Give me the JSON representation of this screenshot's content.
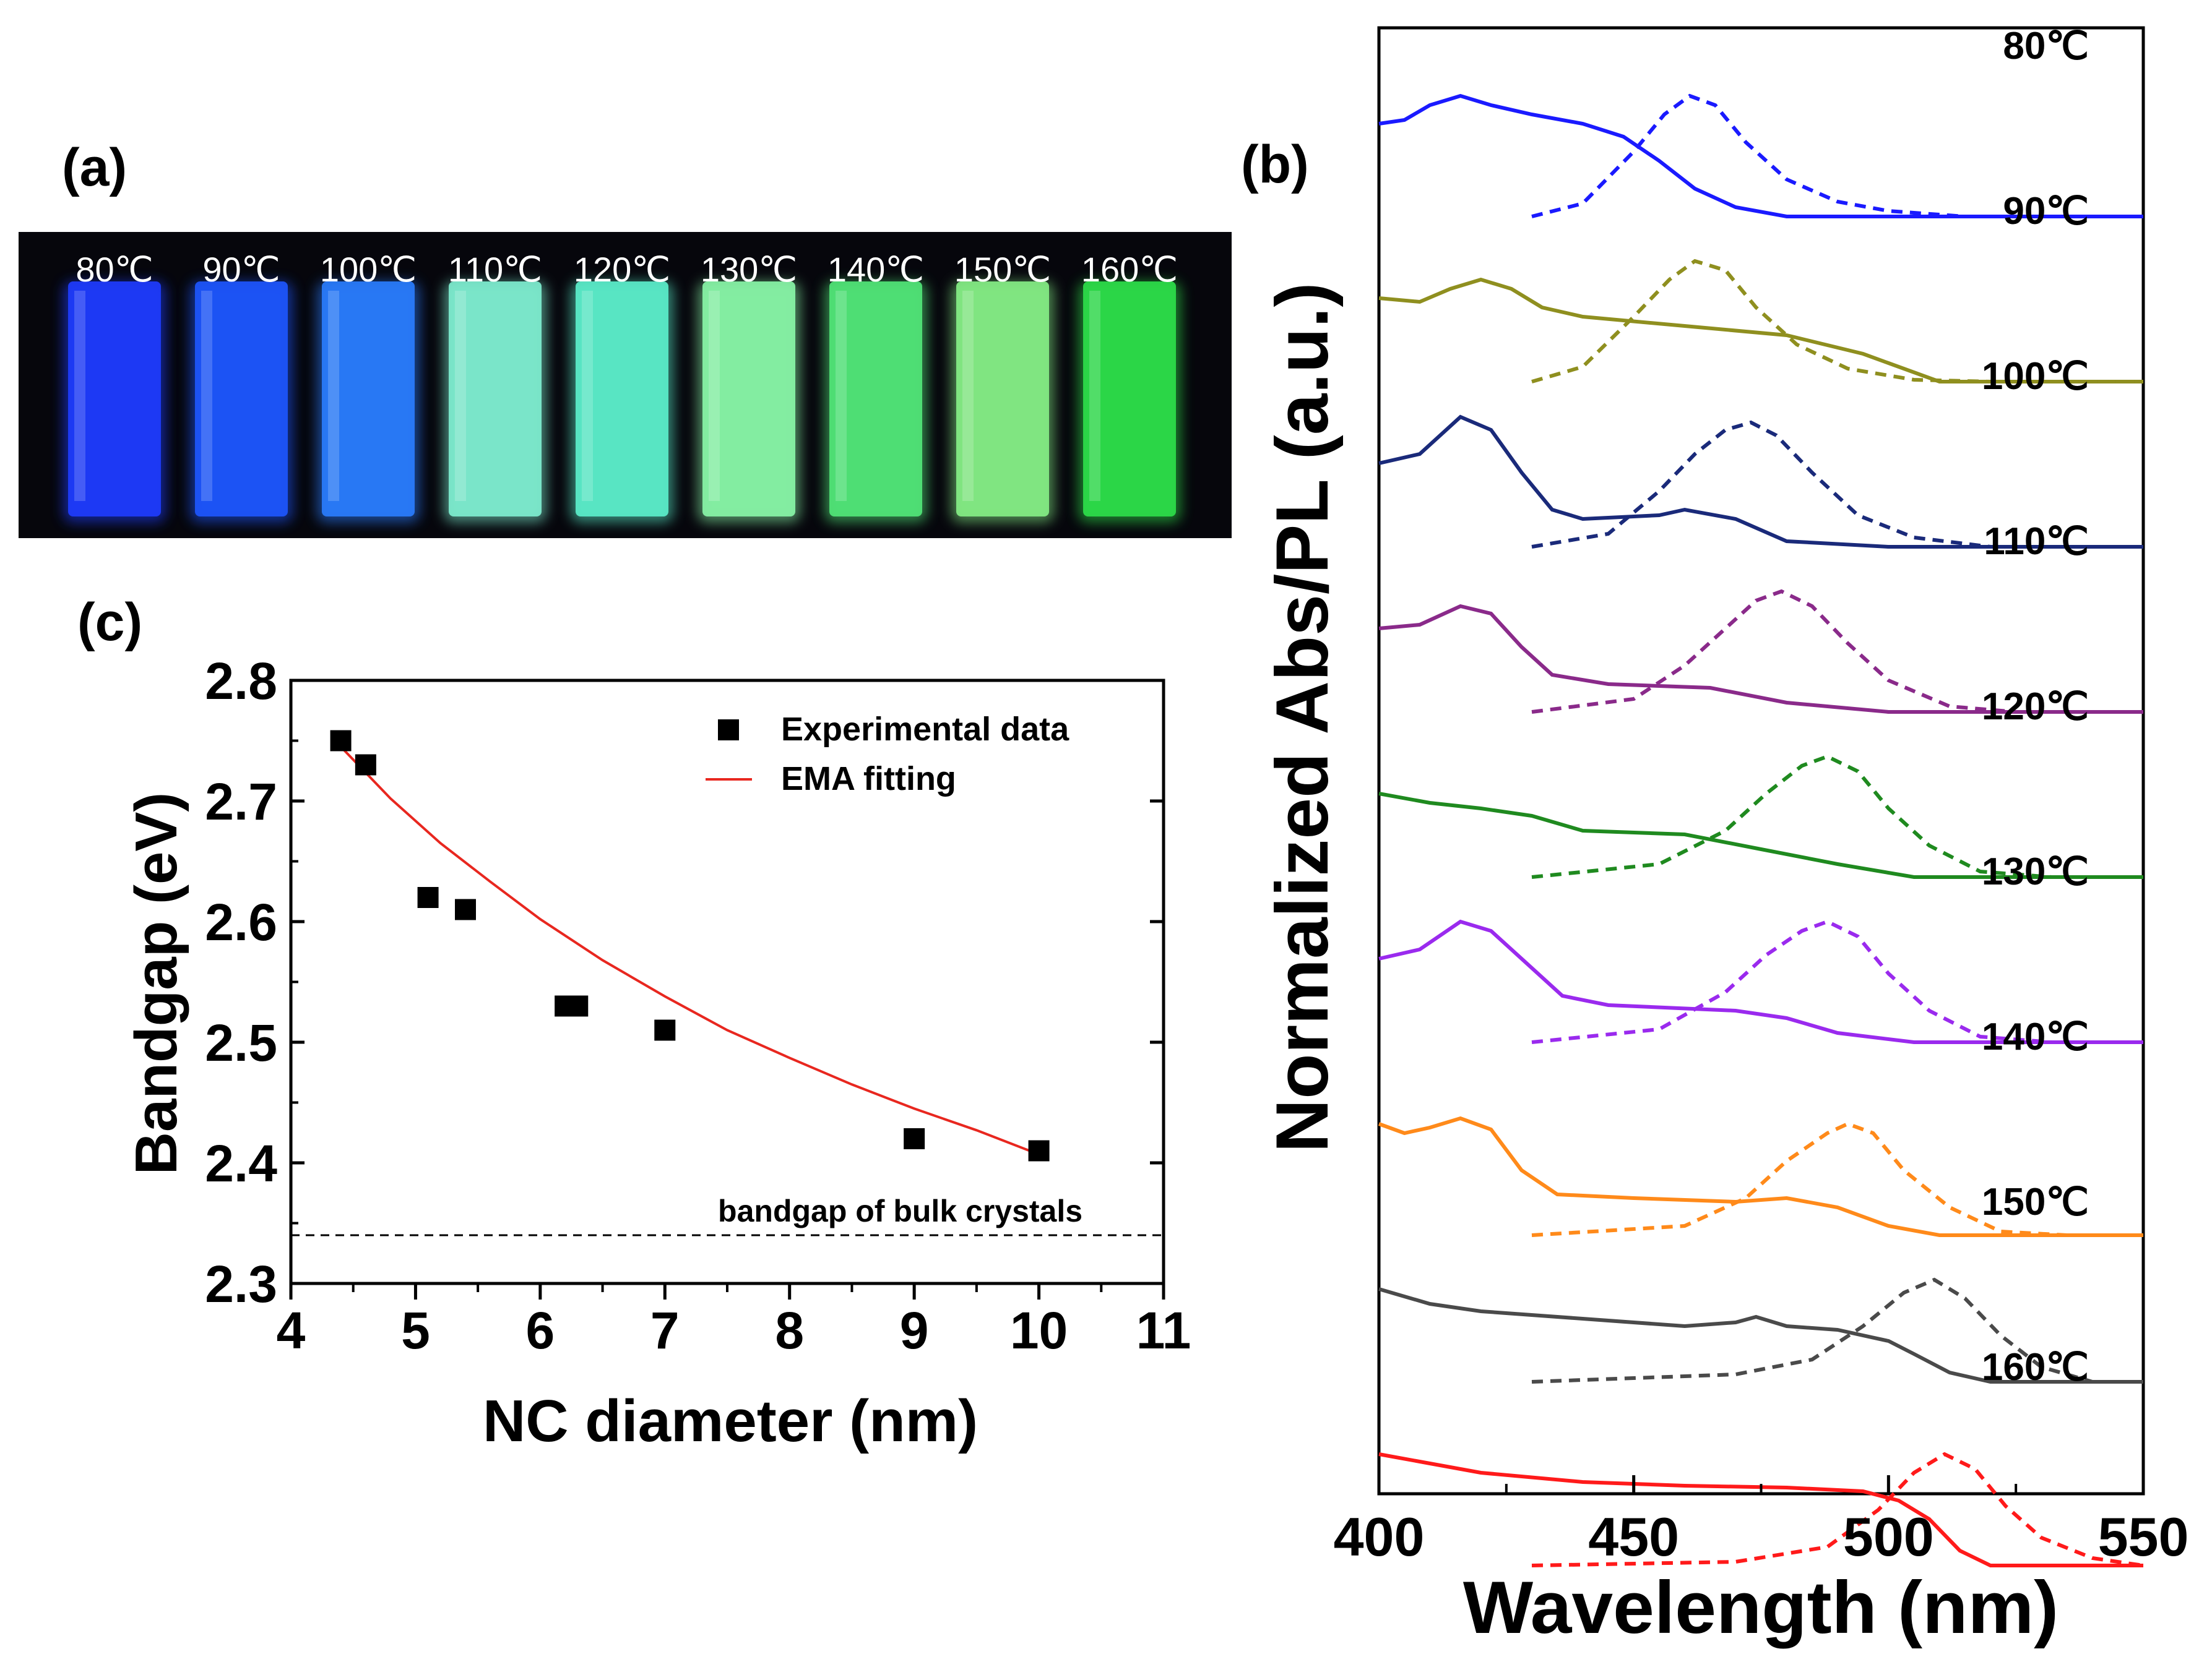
{
  "panels": {
    "a": {
      "label": "(a)"
    },
    "b": {
      "label": "(b)"
    },
    "c": {
      "label": "(c)"
    }
  },
  "photo": {
    "vials": [
      {
        "label": "80℃",
        "color": "#1f3cff"
      },
      {
        "label": "90℃",
        "color": "#1e57ff"
      },
      {
        "label": "100℃",
        "color": "#2a7dff"
      },
      {
        "label": "110℃",
        "color": "#7ff0d2"
      },
      {
        "label": "120℃",
        "color": "#5cf0cc"
      },
      {
        "label": "130℃",
        "color": "#8af7a8"
      },
      {
        "label": "140℃",
        "color": "#52e879"
      },
      {
        "label": "150℃",
        "color": "#86ef86"
      },
      {
        "label": "160℃",
        "color": "#2ee04a"
      }
    ]
  },
  "chart_data": [
    {
      "type": "scatter",
      "panel": "c",
      "xlabel": "NC diameter (nm)",
      "ylabel": "Bandgap (eV)",
      "xlim": [
        4,
        11
      ],
      "ylim": [
        2.3,
        2.8
      ],
      "xticks": [
        "4",
        "5",
        "6",
        "7",
        "8",
        "9",
        "10",
        "11"
      ],
      "yticks": [
        "2.3",
        "2.4",
        "2.5",
        "2.6",
        "2.7",
        "2.8"
      ],
      "series": [
        {
          "name": "Experimental data",
          "x": [
            4.4,
            4.6,
            5.1,
            5.4,
            6.2,
            6.3,
            7.0,
            9.0,
            10.0
          ],
          "y": [
            2.75,
            2.73,
            2.62,
            2.61,
            2.53,
            2.53,
            2.51,
            2.42,
            2.41
          ]
        },
        {
          "name": "EMA fitting",
          "color": "#e8271f",
          "x": [
            4.4,
            4.8,
            5.2,
            5.6,
            6.0,
            6.5,
            7.0,
            7.5,
            8.0,
            8.5,
            9.0,
            9.5,
            10.0
          ],
          "y": [
            2.745,
            2.702,
            2.665,
            2.633,
            2.602,
            2.568,
            2.538,
            2.51,
            2.487,
            2.465,
            2.445,
            2.427,
            2.407
          ]
        }
      ],
      "reference_line": {
        "label": "bandgap of bulk crystals",
        "y": 2.34
      }
    },
    {
      "type": "line",
      "panel": "b",
      "xlabel": "Wavelength (nm)",
      "ylabel": "Normalized Abs/PL (a.u.)",
      "xlim": [
        400,
        550
      ],
      "xticks": [
        "400",
        "450",
        "500",
        "550"
      ],
      "series": [
        {
          "name": "80℃",
          "color": "#1a1aff",
          "abs": [
            [
              400,
              0.05
            ],
            [
              405,
              0.07
            ],
            [
              410,
              0.15
            ],
            [
              416,
              0.2
            ],
            [
              422,
              0.15
            ],
            [
              430,
              0.1
            ],
            [
              440,
              0.05
            ],
            [
              448,
              -0.02
            ],
            [
              455,
              -0.15
            ],
            [
              462,
              -0.3
            ],
            [
              470,
              -0.4
            ],
            [
              480,
              -0.45
            ],
            [
              500,
              -0.45
            ],
            [
              550,
              -0.45
            ]
          ],
          "pl": [
            [
              430,
              -0.45
            ],
            [
              440,
              -0.38
            ],
            [
              450,
              -0.1
            ],
            [
              456,
              0.1
            ],
            [
              461,
              0.2
            ],
            [
              466,
              0.15
            ],
            [
              472,
              -0.05
            ],
            [
              480,
              -0.25
            ],
            [
              490,
              -0.37
            ],
            [
              500,
              -0.42
            ],
            [
              515,
              -0.45
            ],
            [
              550,
              -0.45
            ]
          ]
        },
        {
          "name": "90℃",
          "color": "#8f8f1f",
          "abs": [
            [
              400,
              0.0
            ],
            [
              408,
              -0.02
            ],
            [
              414,
              0.05
            ],
            [
              420,
              0.1
            ],
            [
              426,
              0.05
            ],
            [
              432,
              -0.05
            ],
            [
              440,
              -0.1
            ],
            [
              460,
              -0.15
            ],
            [
              480,
              -0.2
            ],
            [
              495,
              -0.3
            ],
            [
              500,
              -0.35
            ],
            [
              510,
              -0.45
            ],
            [
              550,
              -0.45
            ]
          ],
          "pl": [
            [
              430,
              -0.45
            ],
            [
              440,
              -0.37
            ],
            [
              450,
              -0.1
            ],
            [
              457,
              0.1
            ],
            [
              462,
              0.2
            ],
            [
              468,
              0.15
            ],
            [
              474,
              -0.05
            ],
            [
              482,
              -0.25
            ],
            [
              492,
              -0.38
            ],
            [
              505,
              -0.44
            ],
            [
              520,
              -0.45
            ],
            [
              550,
              -0.45
            ]
          ]
        },
        {
          "name": "100℃",
          "color": "#1a2a7a",
          "abs": [
            [
              400,
              0.0
            ],
            [
              408,
              0.05
            ],
            [
              416,
              0.25
            ],
            [
              422,
              0.18
            ],
            [
              428,
              -0.05
            ],
            [
              434,
              -0.25
            ],
            [
              440,
              -0.3
            ],
            [
              455,
              -0.28
            ],
            [
              460,
              -0.25
            ],
            [
              470,
              -0.3
            ],
            [
              480,
              -0.42
            ],
            [
              500,
              -0.45
            ],
            [
              550,
              -0.45
            ]
          ],
          "pl": [
            [
              430,
              -0.45
            ],
            [
              445,
              -0.38
            ],
            [
              455,
              -0.15
            ],
            [
              462,
              0.05
            ],
            [
              468,
              0.18
            ],
            [
              473,
              0.22
            ],
            [
              478,
              0.15
            ],
            [
              485,
              -0.05
            ],
            [
              494,
              -0.28
            ],
            [
              505,
              -0.4
            ],
            [
              520,
              -0.45
            ],
            [
              550,
              -0.45
            ]
          ]
        },
        {
          "name": "110℃",
          "color": "#8a2a8a",
          "abs": [
            [
              400,
              0.0
            ],
            [
              408,
              0.02
            ],
            [
              416,
              0.12
            ],
            [
              422,
              0.08
            ],
            [
              428,
              -0.1
            ],
            [
              434,
              -0.25
            ],
            [
              445,
              -0.3
            ],
            [
              465,
              -0.32
            ],
            [
              480,
              -0.4
            ],
            [
              500,
              -0.45
            ],
            [
              550,
              -0.45
            ]
          ],
          "pl": [
            [
              430,
              -0.45
            ],
            [
              450,
              -0.38
            ],
            [
              460,
              -0.2
            ],
            [
              468,
              0.0
            ],
            [
              474,
              0.15
            ],
            [
              479,
              0.2
            ],
            [
              485,
              0.12
            ],
            [
              492,
              -0.08
            ],
            [
              500,
              -0.28
            ],
            [
              512,
              -0.42
            ],
            [
              525,
              -0.45
            ],
            [
              550,
              -0.45
            ]
          ]
        },
        {
          "name": "120℃",
          "color": "#1f8a1f",
          "abs": [
            [
              400,
              0.0
            ],
            [
              410,
              -0.05
            ],
            [
              420,
              -0.08
            ],
            [
              430,
              -0.12
            ],
            [
              440,
              -0.2
            ],
            [
              460,
              -0.22
            ],
            [
              475,
              -0.3
            ],
            [
              490,
              -0.38
            ],
            [
              505,
              -0.45
            ],
            [
              550,
              -0.45
            ]
          ],
          "pl": [
            [
              430,
              -0.45
            ],
            [
              455,
              -0.38
            ],
            [
              468,
              -0.2
            ],
            [
              476,
              0.0
            ],
            [
              483,
              0.15
            ],
            [
              488,
              0.2
            ],
            [
              494,
              0.12
            ],
            [
              500,
              -0.08
            ],
            [
              508,
              -0.28
            ],
            [
              518,
              -0.42
            ],
            [
              532,
              -0.45
            ],
            [
              550,
              -0.45
            ]
          ]
        },
        {
          "name": "130℃",
          "color": "#9a2aee",
          "abs": [
            [
              400,
              0.0
            ],
            [
              408,
              0.05
            ],
            [
              416,
              0.2
            ],
            [
              422,
              0.15
            ],
            [
              430,
              -0.05
            ],
            [
              436,
              -0.2
            ],
            [
              445,
              -0.25
            ],
            [
              470,
              -0.28
            ],
            [
              480,
              -0.32
            ],
            [
              490,
              -0.4
            ],
            [
              505,
              -0.45
            ],
            [
              550,
              -0.45
            ]
          ],
          "pl": [
            [
              430,
              -0.45
            ],
            [
              455,
              -0.38
            ],
            [
              468,
              -0.18
            ],
            [
              476,
              0.02
            ],
            [
              483,
              0.15
            ],
            [
              488,
              0.2
            ],
            [
              494,
              0.12
            ],
            [
              500,
              -0.08
            ],
            [
              508,
              -0.28
            ],
            [
              518,
              -0.42
            ],
            [
              532,
              -0.45
            ],
            [
              550,
              -0.45
            ]
          ]
        },
        {
          "name": "140℃",
          "color": "#ff8a1a",
          "abs": [
            [
              400,
              0.0
            ],
            [
              405,
              -0.05
            ],
            [
              410,
              -0.02
            ],
            [
              416,
              0.03
            ],
            [
              422,
              -0.03
            ],
            [
              428,
              -0.25
            ],
            [
              435,
              -0.38
            ],
            [
              450,
              -0.4
            ],
            [
              470,
              -0.42
            ],
            [
              480,
              -0.4
            ],
            [
              490,
              -0.45
            ],
            [
              500,
              -0.55
            ],
            [
              510,
              -0.6
            ],
            [
              550,
              -0.6
            ]
          ],
          "pl": [
            [
              430,
              -0.6
            ],
            [
              460,
              -0.55
            ],
            [
              472,
              -0.4
            ],
            [
              480,
              -0.2
            ],
            [
              488,
              -0.05
            ],
            [
              492,
              0.0
            ],
            [
              497,
              -0.05
            ],
            [
              503,
              -0.25
            ],
            [
              512,
              -0.45
            ],
            [
              522,
              -0.58
            ],
            [
              535,
              -0.6
            ],
            [
              550,
              -0.6
            ]
          ]
        },
        {
          "name": "150℃",
          "color": "#4a4a4a",
          "abs": [
            [
              400,
              0.0
            ],
            [
              410,
              -0.08
            ],
            [
              420,
              -0.12
            ],
            [
              440,
              -0.16
            ],
            [
              460,
              -0.2
            ],
            [
              470,
              -0.18
            ],
            [
              474,
              -0.15
            ],
            [
              480,
              -0.2
            ],
            [
              490,
              -0.22
            ],
            [
              500,
              -0.28
            ],
            [
              505,
              -0.35
            ],
            [
              512,
              -0.45
            ],
            [
              520,
              -0.5
            ],
            [
              550,
              -0.5
            ]
          ],
          "pl": [
            [
              430,
              -0.5
            ],
            [
              470,
              -0.46
            ],
            [
              485,
              -0.38
            ],
            [
              495,
              -0.2
            ],
            [
              503,
              -0.02
            ],
            [
              509,
              0.05
            ],
            [
              515,
              -0.05
            ],
            [
              522,
              -0.25
            ],
            [
              530,
              -0.42
            ],
            [
              540,
              -0.5
            ],
            [
              550,
              -0.5
            ]
          ]
        },
        {
          "name": "160℃",
          "color": "#ff1a1a",
          "abs": [
            [
              400,
              0.0
            ],
            [
              410,
              -0.05
            ],
            [
              420,
              -0.1
            ],
            [
              440,
              -0.15
            ],
            [
              460,
              -0.17
            ],
            [
              480,
              -0.18
            ],
            [
              495,
              -0.2
            ],
            [
              502,
              -0.25
            ],
            [
              508,
              -0.35
            ],
            [
              514,
              -0.52
            ],
            [
              520,
              -0.6
            ],
            [
              550,
              -0.6
            ]
          ],
          "pl": [
            [
              430,
              -0.6
            ],
            [
              470,
              -0.58
            ],
            [
              488,
              -0.5
            ],
            [
              498,
              -0.3
            ],
            [
              505,
              -0.1
            ],
            [
              511,
              0.0
            ],
            [
              517,
              -0.08
            ],
            [
              523,
              -0.28
            ],
            [
              530,
              -0.45
            ],
            [
              540,
              -0.56
            ],
            [
              550,
              -0.6
            ]
          ]
        }
      ]
    }
  ]
}
